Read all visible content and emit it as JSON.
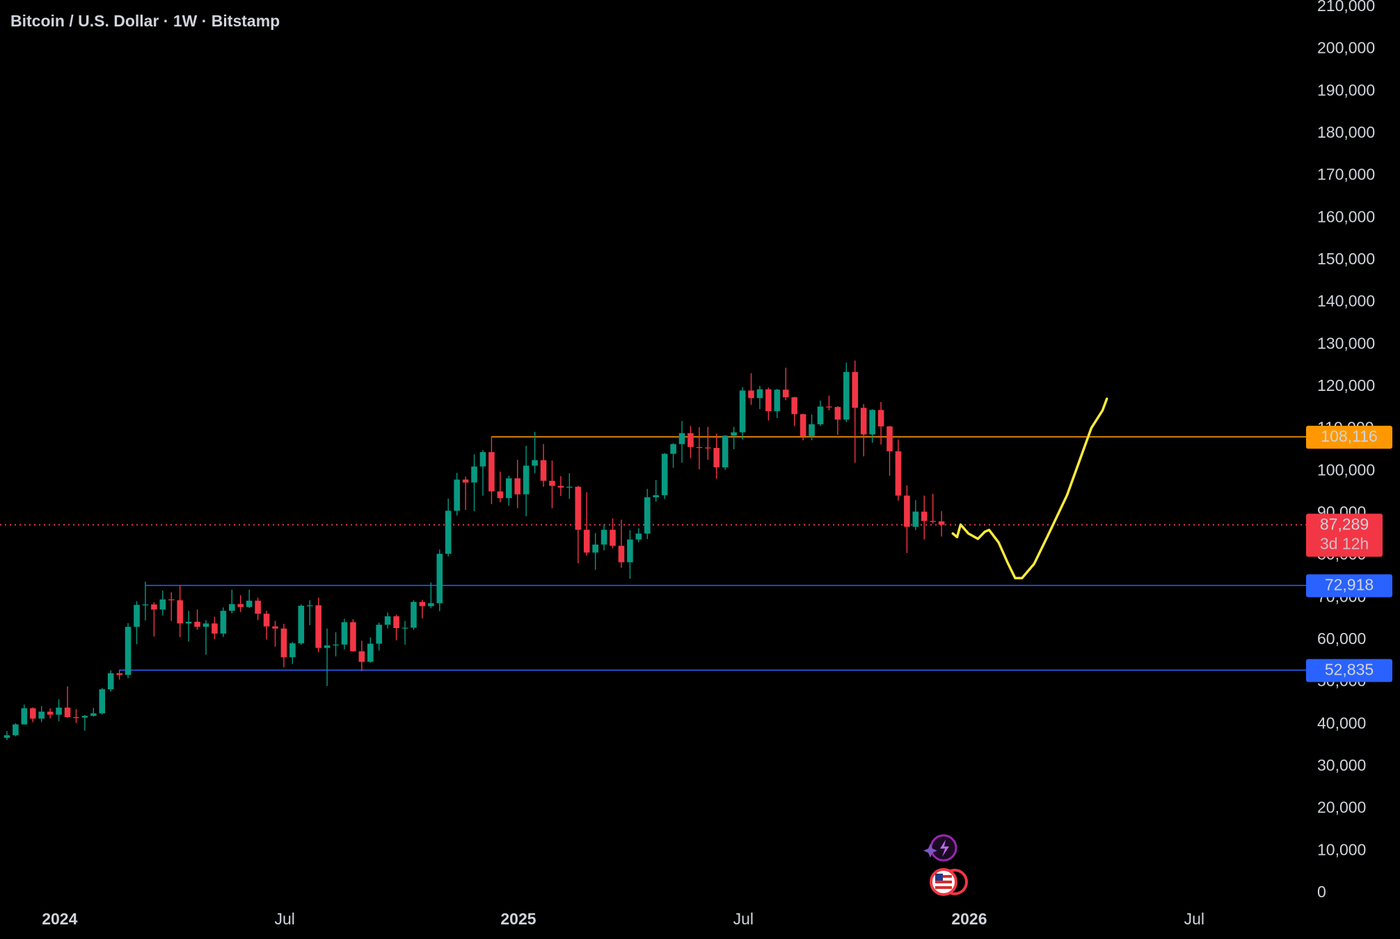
{
  "chart_data": {
    "type": "candlestick",
    "title": "Bitcoin / U.S. Dollar · 1W · Bitstamp",
    "up_color": "#089981",
    "down_color": "#f23645",
    "open": [
      36800,
      37400,
      39970,
      43800,
      41350,
      43000,
      42280,
      43950,
      41700,
      41600,
      42000,
      42600,
      48300,
      52100,
      51700,
      63100,
      68300,
      68400,
      67200,
      69600,
      69400,
      63900,
      64300,
      63100,
      63900,
      61500,
      66900,
      68500,
      67800,
      69300,
      66200,
      63200,
      62700,
      55900,
      59200,
      68100,
      68200,
      58100,
      58700,
      58900,
      64200,
      57300,
      54800,
      59100,
      63600,
      65600,
      62800,
      62900,
      69000,
      68000,
      68700,
      80400,
      90600,
      98000,
      97300,
      101100,
      104500,
      95200,
      93600,
      98300,
      94500,
      101300,
      102600,
      97700,
      96500,
      96100,
      96300,
      86100,
      80700,
      82600,
      86100,
      82300,
      78400,
      83800,
      85200,
      93800,
      94300,
      104100,
      106400,
      109000,
      105700,
      105600,
      105500,
      100900,
      108400,
      109200,
      119100,
      117300,
      119400,
      114200,
      119300,
      117500,
      113500,
      108300,
      111100,
      115300,
      115200,
      112200,
      123500,
      115000,
      108700,
      114500,
      110600,
      104700,
      94200,
      86800,
      90400,
      88200,
      88100
    ],
    "high": [
      38400,
      40250,
      44700,
      44000,
      44300,
      43800,
      45900,
      49000,
      43600,
      42200,
      43900,
      48600,
      52800,
      52900,
      64000,
      69200,
      73800,
      68900,
      71700,
      71300,
      72800,
      66900,
      67200,
      64700,
      65500,
      67700,
      71900,
      70600,
      71900,
      70000,
      66900,
      64500,
      63800,
      59500,
      68400,
      69400,
      70000,
      62700,
      61800,
      65000,
      64900,
      59800,
      60600,
      64100,
      66500,
      66000,
      64500,
      69400,
      69500,
      73600,
      81400,
      93500,
      99600,
      98700,
      104000,
      105000,
      108300,
      99900,
      98900,
      102700,
      106000,
      109300,
      106400,
      102500,
      98800,
      99500,
      96500,
      95000,
      85300,
      87400,
      88800,
      88500,
      86000,
      86500,
      95800,
      97900,
      104300,
      106600,
      111900,
      110700,
      110400,
      110500,
      108900,
      108500,
      110500,
      119900,
      123200,
      120200,
      119800,
      119500,
      124500,
      117600,
      113600,
      113400,
      116700,
      117900,
      115400,
      125700,
      126200,
      115900,
      114700,
      116400,
      110700,
      107500,
      96600,
      93100,
      94200,
      94600,
      90500
    ],
    "low": [
      36300,
      37150,
      39970,
      40500,
      40500,
      41400,
      40750,
      41500,
      40300,
      38500,
      41800,
      42300,
      47700,
      50600,
      50900,
      59000,
      64600,
      60800,
      65800,
      64500,
      60700,
      59600,
      62400,
      56500,
      60200,
      60700,
      66300,
      66600,
      67600,
      64700,
      60100,
      58400,
      53500,
      54300,
      58800,
      63500,
      57100,
      49100,
      56100,
      57800,
      57200,
      52600,
      54600,
      57500,
      62700,
      59900,
      58900,
      62400,
      65100,
      67500,
      66800,
      79800,
      89500,
      90800,
      90500,
      94200,
      92200,
      92600,
      91800,
      91200,
      89300,
      99500,
      96300,
      91200,
      94100,
      93400,
      78200,
      80000,
      76600,
      81200,
      81700,
      77100,
      74500,
      83100,
      83900,
      92800,
      93400,
      100800,
      102000,
      103100,
      100400,
      102700,
      98200,
      100300,
      105200,
      107500,
      115700,
      114700,
      112000,
      112600,
      116800,
      110700,
      107300,
      107300,
      110700,
      114400,
      108600,
      111600,
      102000,
      103500,
      106700,
      106300,
      98900,
      93000,
      80600,
      86000,
      83800,
      87600,
      84500
    ],
    "close": [
      37400,
      39970,
      43800,
      41350,
      43000,
      42280,
      43950,
      41700,
      41600,
      42000,
      42600,
      48300,
      52100,
      51700,
      63100,
      68300,
      68400,
      67200,
      69600,
      69400,
      63900,
      64300,
      63100,
      63900,
      61500,
      66900,
      68500,
      67800,
      69300,
      66200,
      63200,
      62700,
      55900,
      59200,
      68100,
      68200,
      58100,
      58700,
      58900,
      64200,
      57300,
      54800,
      59100,
      63600,
      65600,
      62800,
      62900,
      69000,
      68000,
      68700,
      80400,
      90600,
      98000,
      97300,
      101100,
      104500,
      95200,
      93600,
      98300,
      94500,
      101300,
      102600,
      97700,
      96500,
      96100,
      96300,
      86100,
      80700,
      82600,
      86100,
      82300,
      78400,
      83800,
      85200,
      93800,
      94300,
      104100,
      106400,
      109000,
      105700,
      105600,
      105500,
      100900,
      108400,
      109200,
      119100,
      117300,
      119400,
      114200,
      119300,
      117500,
      113500,
      108300,
      111100,
      115300,
      115200,
      112200,
      123500,
      115000,
      108700,
      114500,
      110600,
      104700,
      94200,
      86800,
      90400,
      88200,
      88100,
      87289
    ],
    "xlim": [
      -0.8,
      149.8
    ],
    "xticks": [
      {
        "value": 6.1,
        "label": "2024"
      },
      {
        "value": 32.1,
        "label": "Jul"
      },
      {
        "value": 59.1,
        "label": "2025"
      },
      {
        "value": 85.1,
        "label": "Jul"
      },
      {
        "value": 111.2,
        "label": "2026"
      },
      {
        "value": 137.2,
        "label": "Jul"
      }
    ],
    "ylim": [
      0,
      210000
    ],
    "yticks": [
      0,
      {
        "value": 10000,
        "label": "10,000"
      },
      {
        "value": 20000,
        "label": "20,000"
      },
      {
        "value": 30000,
        "label": "30,000"
      },
      {
        "value": 40000,
        "label": "40,000"
      },
      {
        "value": 50000,
        "label": "50,000"
      },
      {
        "value": 60000,
        "label": "60,000"
      },
      {
        "value": 70000,
        "label": "70,000"
      },
      {
        "value": 80000,
        "label": "80,000"
      },
      {
        "value": 90000,
        "label": "90,000"
      },
      {
        "value": 100000,
        "label": "100,000"
      },
      {
        "value": 110000,
        "label": "110,000"
      },
      {
        "value": 120000,
        "label": "120,000"
      },
      {
        "value": 130000,
        "label": "130,000"
      },
      {
        "value": 140000,
        "label": "140,000"
      },
      {
        "value": 150000,
        "label": "150,000"
      },
      {
        "value": 160000,
        "label": "160,000"
      },
      {
        "value": 170000,
        "label": "170,000"
      },
      {
        "value": 180000,
        "label": "180,000"
      },
      {
        "value": 190000,
        "label": "190,000"
      },
      {
        "value": 200000,
        "label": "200,000"
      },
      {
        "value": 210000,
        "label": "210,000"
      }
    ],
    "grid": false,
    "levels": [
      {
        "value": 108116,
        "label": "108,116",
        "color": "#ff9800",
        "text_color": "#000000",
        "start": 56
      },
      {
        "value": 72918,
        "label": "72,918",
        "color": "#2962ff",
        "text_color": "#ffffff",
        "start": 16
      },
      {
        "value": 52835,
        "label": "52,835",
        "color": "#2962ff",
        "text_color": "#ffffff",
        "start": 13
      }
    ],
    "last": {
      "value": 87289,
      "label": "87,289",
      "countdown": "3d 12h",
      "color": "#f23645"
    },
    "projection": {
      "color": "#ffeb3b",
      "x": [
        109.3,
        109.8,
        110.2,
        111.1,
        112.2,
        113.0,
        113.5,
        114.6,
        115.6,
        116.5,
        117.3,
        118.7,
        120.4,
        122.5,
        124.0,
        125.3,
        126.6,
        127.1
      ],
      "values": [
        85220,
        84370,
        87330,
        85220,
        83950,
        85640,
        86060,
        83100,
        78450,
        74650,
        74650,
        78030,
        85220,
        94310,
        102770,
        110170,
        114400,
        117150
      ]
    }
  }
}
